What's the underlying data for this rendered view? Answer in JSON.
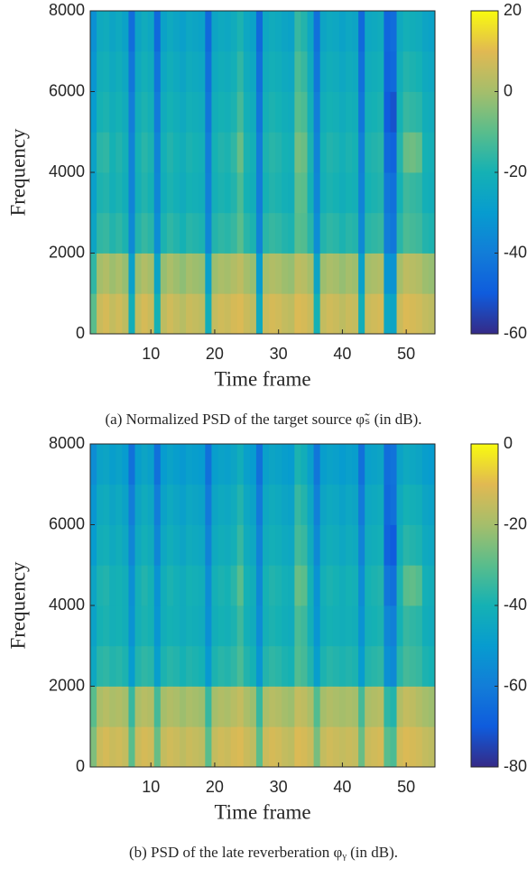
{
  "chart_data": [
    {
      "type": "heatmap",
      "caption": "(a) Normalized PSD of the target source φ̃ₛ (in dB).",
      "xlabel": "Time frame",
      "ylabel": "Frequency",
      "colormap": "parula",
      "xlim": [
        0.5,
        54.5
      ],
      "ylim": [
        0,
        8000
      ],
      "xticks": [
        10,
        20,
        30,
        40,
        50
      ],
      "yticks": [
        0,
        2000,
        4000,
        6000,
        8000
      ],
      "clim": [
        -60,
        20
      ],
      "cticks": [
        -60,
        -40,
        -20,
        0,
        20
      ],
      "x": [
        1,
        2,
        3,
        4,
        5,
        6,
        7,
        8,
        9,
        10,
        11,
        12,
        13,
        14,
        15,
        16,
        17,
        18,
        19,
        20,
        21,
        22,
        23,
        24,
        25,
        26,
        27,
        28,
        29,
        30,
        31,
        32,
        33,
        34,
        35,
        36,
        37,
        38,
        39,
        40,
        41,
        42,
        43,
        44,
        45,
        46,
        47,
        48,
        49,
        50,
        51,
        52,
        53,
        54
      ],
      "y": [
        500,
        1500,
        2500,
        3500,
        4500,
        5500,
        6500,
        7500
      ],
      "z": [
        [
          -10,
          6,
          8,
          5,
          7,
          4,
          -22,
          5,
          8,
          6,
          -20,
          4,
          7,
          5,
          3,
          6,
          5,
          4,
          -22,
          5,
          7,
          6,
          8,
          9,
          6,
          4,
          -24,
          6,
          8,
          7,
          5,
          4,
          9,
          8,
          6,
          -20,
          5,
          7,
          6,
          4,
          6,
          5,
          -22,
          6,
          7,
          8,
          -25,
          -26,
          6,
          9,
          8,
          7,
          5,
          4
        ],
        [
          -16,
          0,
          2,
          -1,
          1,
          -2,
          -28,
          -1,
          2,
          0,
          -26,
          -2,
          1,
          -1,
          -3,
          0,
          -1,
          -2,
          -28,
          -1,
          1,
          0,
          2,
          4,
          0,
          -2,
          -30,
          0,
          2,
          1,
          -1,
          -2,
          4,
          3,
          0,
          -26,
          -1,
          1,
          0,
          -2,
          0,
          -1,
          -28,
          0,
          1,
          2,
          -32,
          -33,
          0,
          4,
          3,
          2,
          -1,
          -2
        ],
        [
          -26,
          -16,
          -15,
          -18,
          -16,
          -19,
          -36,
          -18,
          -15,
          -17,
          -35,
          -19,
          -16,
          -18,
          -20,
          -17,
          -18,
          -19,
          -37,
          -18,
          -16,
          -17,
          -15,
          -10,
          -17,
          -19,
          -38,
          -17,
          -15,
          -16,
          -18,
          -19,
          -10,
          -11,
          -17,
          -35,
          -18,
          -16,
          -17,
          -19,
          -17,
          -18,
          -36,
          -17,
          -16,
          -15,
          -40,
          -42,
          -17,
          -12,
          -13,
          -14,
          -18,
          -19
        ],
        [
          -28,
          -19,
          -18,
          -21,
          -19,
          -22,
          -38,
          -21,
          -18,
          -20,
          -37,
          -22,
          -19,
          -21,
          -23,
          -20,
          -21,
          -22,
          -39,
          -21,
          -19,
          -20,
          -18,
          -12,
          -20,
          -22,
          -40,
          -20,
          -18,
          -19,
          -21,
          -22,
          -9,
          -10,
          -20,
          -37,
          -21,
          -19,
          -20,
          -22,
          -20,
          -21,
          -38,
          -20,
          -19,
          -18,
          -42,
          -44,
          -20,
          -14,
          -15,
          -16,
          -21,
          -22
        ],
        [
          -27,
          -17,
          -16,
          -20,
          -18,
          -21,
          -38,
          -20,
          -17,
          -19,
          -38,
          -21,
          -18,
          -20,
          -22,
          -19,
          -20,
          -21,
          -40,
          -20,
          -18,
          -19,
          -16,
          -8,
          -19,
          -21,
          -40,
          -19,
          -17,
          -18,
          -20,
          -21,
          -6,
          -8,
          -19,
          -38,
          -20,
          -18,
          -19,
          -21,
          -19,
          -20,
          -39,
          -19,
          -18,
          -17,
          -46,
          -48,
          -18,
          -8,
          -7,
          -9,
          -20,
          -21
        ],
        [
          -30,
          -20,
          -19,
          -22,
          -20,
          -23,
          -40,
          -22,
          -19,
          -21,
          -41,
          -23,
          -20,
          -22,
          -24,
          -21,
          -22,
          -23,
          -42,
          -22,
          -20,
          -21,
          -19,
          -13,
          -21,
          -23,
          -42,
          -21,
          -19,
          -20,
          -22,
          -23,
          -10,
          -12,
          -21,
          -40,
          -22,
          -20,
          -21,
          -23,
          -21,
          -22,
          -42,
          -21,
          -20,
          -19,
          -50,
          -52,
          -20,
          -15,
          -16,
          -17,
          -22,
          -23
        ],
        [
          -32,
          -22,
          -21,
          -24,
          -22,
          -25,
          -42,
          -24,
          -21,
          -23,
          -43,
          -25,
          -22,
          -24,
          -26,
          -23,
          -24,
          -25,
          -44,
          -24,
          -22,
          -23,
          -21,
          -16,
          -23,
          -25,
          -44,
          -23,
          -21,
          -22,
          -24,
          -25,
          -12,
          -15,
          -23,
          -42,
          -24,
          -22,
          -23,
          -25,
          -23,
          -24,
          -44,
          -23,
          -22,
          -21,
          -48,
          -46,
          -22,
          -18,
          -19,
          -20,
          -24,
          -25
        ],
        [
          -34,
          -24,
          -23,
          -26,
          -24,
          -27,
          -45,
          -26,
          -23,
          -25,
          -46,
          -27,
          -24,
          -26,
          -28,
          -25,
          -26,
          -27,
          -46,
          -26,
          -24,
          -25,
          -23,
          -19,
          -25,
          -27,
          -46,
          -25,
          -23,
          -24,
          -26,
          -27,
          -15,
          -18,
          -25,
          -44,
          -26,
          -24,
          -25,
          -27,
          -25,
          -26,
          -46,
          -25,
          -24,
          -23,
          -47,
          -45,
          -24,
          -21,
          -22,
          -23,
          -26,
          -27
        ]
      ]
    },
    {
      "type": "heatmap",
      "caption": "(b) PSD of the late reverberation φᵧ (in dB).",
      "xlabel": "Time frame",
      "ylabel": "Frequency",
      "colormap": "parula",
      "xlim": [
        0.5,
        54.5
      ],
      "ylim": [
        0,
        8000
      ],
      "xticks": [
        10,
        20,
        30,
        40,
        50
      ],
      "yticks": [
        0,
        2000,
        4000,
        6000,
        8000
      ],
      "clim": [
        -80,
        0
      ],
      "cticks": [
        -80,
        -60,
        -40,
        -20,
        0
      ],
      "x": [
        1,
        2,
        3,
        4,
        5,
        6,
        7,
        8,
        9,
        10,
        11,
        12,
        13,
        14,
        15,
        16,
        17,
        18,
        19,
        20,
        21,
        22,
        23,
        24,
        25,
        26,
        27,
        28,
        29,
        30,
        31,
        32,
        33,
        34,
        35,
        36,
        37,
        38,
        39,
        40,
        41,
        42,
        43,
        44,
        45,
        46,
        47,
        48,
        49,
        50,
        51,
        52,
        53,
        54
      ],
      "y": [
        500,
        1500,
        2500,
        3500,
        4500,
        5500,
        6500,
        7500
      ],
      "z": [
        [
          -25,
          -14,
          -12,
          -14,
          -13,
          -15,
          -30,
          -14,
          -12,
          -13,
          -28,
          -15,
          -13,
          -14,
          -16,
          -14,
          -15,
          -16,
          -30,
          -15,
          -13,
          -14,
          -12,
          -11,
          -14,
          -16,
          -30,
          -14,
          -12,
          -13,
          -15,
          -16,
          -11,
          -12,
          -14,
          -26,
          -15,
          -13,
          -14,
          -15,
          -14,
          -15,
          -28,
          -14,
          -13,
          -12,
          -30,
          -32,
          -13,
          -11,
          -12,
          -13,
          -15,
          -16
        ],
        [
          -30,
          -19,
          -17,
          -19,
          -18,
          -20,
          -35,
          -19,
          -17,
          -18,
          -33,
          -20,
          -18,
          -19,
          -21,
          -19,
          -20,
          -21,
          -35,
          -20,
          -18,
          -19,
          -17,
          -15,
          -19,
          -21,
          -35,
          -19,
          -17,
          -18,
          -20,
          -21,
          -15,
          -16,
          -19,
          -31,
          -20,
          -18,
          -19,
          -20,
          -19,
          -20,
          -33,
          -19,
          -18,
          -17,
          -36,
          -38,
          -18,
          -15,
          -16,
          -18,
          -20,
          -21
        ],
        [
          -45,
          -37,
          -36,
          -38,
          -37,
          -39,
          -50,
          -38,
          -36,
          -37,
          -49,
          -39,
          -37,
          -38,
          -40,
          -38,
          -39,
          -40,
          -51,
          -39,
          -37,
          -38,
          -36,
          -32,
          -38,
          -40,
          -52,
          -38,
          -36,
          -37,
          -39,
          -40,
          -31,
          -33,
          -38,
          -49,
          -39,
          -37,
          -38,
          -39,
          -38,
          -39,
          -50,
          -38,
          -37,
          -36,
          -54,
          -56,
          -37,
          -33,
          -34,
          -35,
          -39,
          -40
        ],
        [
          -47,
          -40,
          -39,
          -41,
          -40,
          -42,
          -53,
          -41,
          -39,
          -40,
          -52,
          -42,
          -40,
          -41,
          -43,
          -41,
          -42,
          -43,
          -54,
          -42,
          -40,
          -41,
          -39,
          -34,
          -41,
          -43,
          -55,
          -41,
          -39,
          -40,
          -42,
          -43,
          -32,
          -34,
          -41,
          -52,
          -42,
          -40,
          -41,
          -42,
          -41,
          -42,
          -53,
          -41,
          -40,
          -39,
          -57,
          -59,
          -40,
          -35,
          -36,
          -37,
          -42,
          -43
        ],
        [
          -46,
          -39,
          -38,
          -41,
          -40,
          -42,
          -54,
          -41,
          -38,
          -40,
          -53,
          -42,
          -39,
          -41,
          -43,
          -40,
          -41,
          -42,
          -55,
          -41,
          -39,
          -40,
          -37,
          -30,
          -40,
          -42,
          -56,
          -40,
          -38,
          -39,
          -41,
          -42,
          -28,
          -30,
          -40,
          -53,
          -41,
          -39,
          -40,
          -42,
          -40,
          -41,
          -55,
          -40,
          -39,
          -38,
          -62,
          -64,
          -39,
          -30,
          -29,
          -31,
          -41,
          -42
        ],
        [
          -50,
          -42,
          -41,
          -44,
          -42,
          -45,
          -57,
          -44,
          -41,
          -43,
          -57,
          -45,
          -42,
          -44,
          -46,
          -43,
          -44,
          -45,
          -58,
          -44,
          -42,
          -43,
          -41,
          -35,
          -43,
          -45,
          -58,
          -43,
          -41,
          -42,
          -44,
          -45,
          -33,
          -35,
          -43,
          -56,
          -44,
          -42,
          -43,
          -45,
          -43,
          -44,
          -58,
          -43,
          -42,
          -41,
          -68,
          -70,
          -42,
          -37,
          -38,
          -39,
          -44,
          -45
        ],
        [
          -52,
          -44,
          -43,
          -46,
          -44,
          -47,
          -60,
          -46,
          -43,
          -45,
          -60,
          -47,
          -44,
          -46,
          -48,
          -45,
          -46,
          -47,
          -61,
          -46,
          -44,
          -45,
          -43,
          -38,
          -45,
          -47,
          -61,
          -45,
          -43,
          -44,
          -46,
          -47,
          -35,
          -38,
          -45,
          -59,
          -46,
          -44,
          -45,
          -47,
          -45,
          -46,
          -61,
          -45,
          -44,
          -43,
          -66,
          -64,
          -44,
          -40,
          -41,
          -42,
          -46,
          -47
        ],
        [
          -55,
          -47,
          -46,
          -49,
          -47,
          -50,
          -64,
          -49,
          -46,
          -48,
          -64,
          -50,
          -47,
          -49,
          -51,
          -48,
          -49,
          -50,
          -64,
          -49,
          -47,
          -48,
          -46,
          -42,
          -48,
          -50,
          -64,
          -48,
          -46,
          -47,
          -49,
          -50,
          -39,
          -42,
          -48,
          -62,
          -49,
          -47,
          -48,
          -50,
          -48,
          -49,
          -64,
          -48,
          -47,
          -46,
          -65,
          -63,
          -47,
          -44,
          -45,
          -46,
          -49,
          -50
        ]
      ]
    }
  ]
}
